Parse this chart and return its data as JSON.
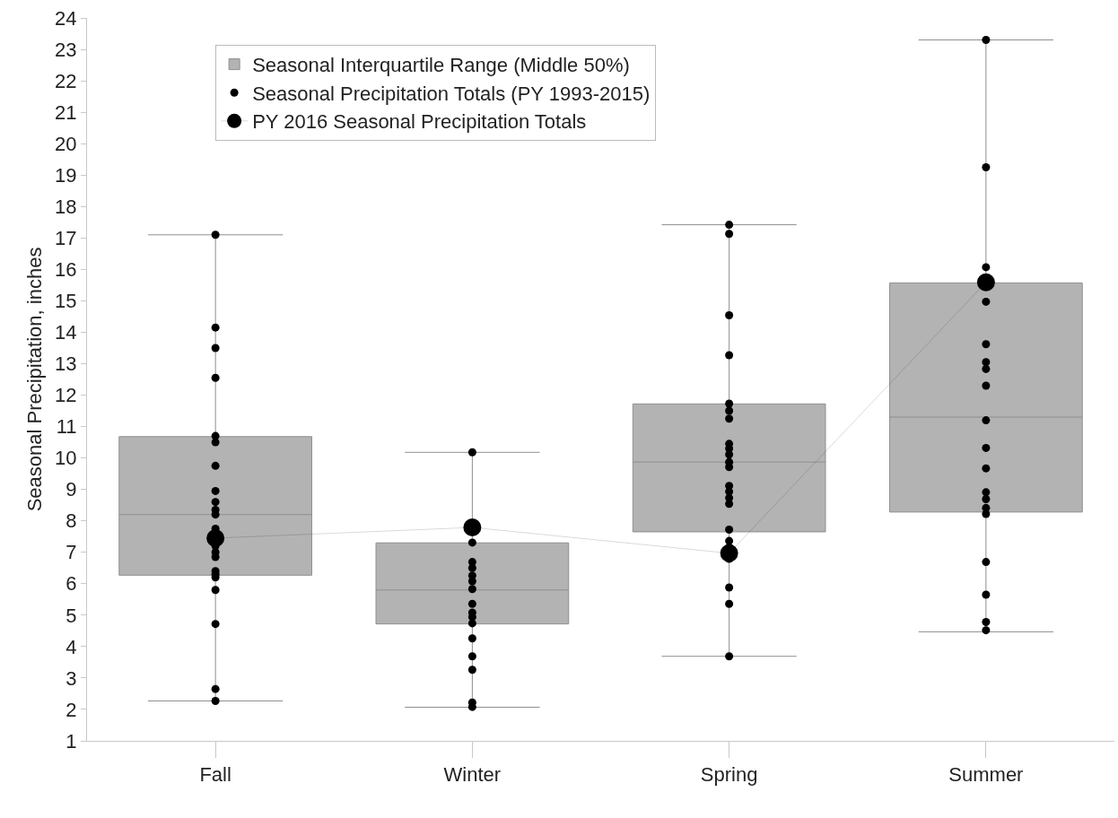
{
  "chart_data": {
    "type": "box",
    "ylabel": "Seasonal Precipitation, inches",
    "categories": [
      "Fall",
      "Winter",
      "Spring",
      "Summer"
    ],
    "ylim": [
      1,
      24
    ],
    "yticks": [
      1,
      2,
      3,
      4,
      5,
      6,
      7,
      8,
      9,
      10,
      11,
      12,
      13,
      14,
      15,
      16,
      17,
      18,
      19,
      20,
      21,
      22,
      23,
      24
    ],
    "grid": false,
    "legend": "top left",
    "series": [
      {
        "name": "Seasonal Interquartile Range (Middle 50%)",
        "color": "#b3b3b3",
        "boxes": [
          {
            "low": 2.27,
            "q1": 6.27,
            "median": 8.2,
            "q3": 10.68,
            "high": 17.1
          },
          {
            "low": 2.07,
            "q1": 4.72,
            "median": 5.8,
            "q3": 7.3,
            "high": 10.18
          },
          {
            "low": 3.69,
            "q1": 7.65,
            "median": 9.87,
            "q3": 11.72,
            "high": 17.42
          },
          {
            "low": 4.47,
            "q1": 8.28,
            "median": 11.3,
            "q3": 15.57,
            "high": 23.3
          }
        ]
      },
      {
        "type": "scatter",
        "name": "Seasonal Precipitation Totals (PY 1993-2015)",
        "color": "#000000",
        "marker": "circle",
        "x": [
          "Fall",
          "Fall",
          "Fall",
          "Fall",
          "Fall",
          "Fall",
          "Fall",
          "Fall",
          "Fall",
          "Fall",
          "Fall",
          "Fall",
          "Fall",
          "Fall",
          "Fall",
          "Fall",
          "Fall",
          "Fall",
          "Fall",
          "Fall",
          "Fall",
          "Fall",
          "Winter",
          "Winter",
          "Winter",
          "Winter",
          "Winter",
          "Winter",
          "Winter",
          "Winter",
          "Winter",
          "Winter",
          "Winter",
          "Winter",
          "Winter",
          "Winter",
          "Winter",
          "Winter",
          "Spring",
          "Spring",
          "Spring",
          "Spring",
          "Spring",
          "Spring",
          "Spring",
          "Spring",
          "Spring",
          "Spring",
          "Spring",
          "Spring",
          "Spring",
          "Spring",
          "Spring",
          "Spring",
          "Spring",
          "Spring",
          "Spring",
          "Spring",
          "Spring",
          "Spring",
          "Spring",
          "Summer",
          "Summer",
          "Summer",
          "Summer",
          "Summer",
          "Summer",
          "Summer",
          "Summer",
          "Summer",
          "Summer",
          "Summer",
          "Summer",
          "Summer",
          "Summer",
          "Summer",
          "Summer",
          "Summer",
          "Summer",
          "Summer"
        ],
        "values": [
          17.1,
          14.15,
          13.5,
          12.55,
          10.7,
          10.5,
          9.75,
          8.95,
          8.6,
          8.35,
          8.2,
          7.75,
          7.2,
          7.0,
          6.85,
          6.4,
          6.3,
          6.2,
          5.8,
          4.72,
          2.65,
          2.27,
          10.18,
          7.31,
          6.69,
          6.5,
          6.26,
          6.08,
          5.83,
          5.36,
          5.08,
          4.94,
          4.74,
          4.26,
          3.69,
          3.26,
          2.22,
          2.08,
          17.42,
          17.13,
          14.54,
          13.27,
          11.73,
          11.5,
          11.25,
          10.45,
          10.3,
          10.11,
          9.87,
          9.71,
          9.11,
          8.93,
          8.73,
          8.54,
          7.72,
          7.36,
          7.16,
          6.79,
          5.88,
          5.36,
          3.69,
          23.3,
          19.25,
          16.07,
          14.97,
          13.62,
          13.05,
          12.83,
          12.3,
          11.2,
          10.32,
          9.67,
          8.91,
          8.69,
          8.41,
          8.22,
          6.69,
          5.65,
          4.78,
          4.52
        ]
      },
      {
        "type": "line",
        "name": "PY 2016 Seasonal Precipitation Totals",
        "color": "#000000",
        "marker": "circle",
        "values": [
          7.45,
          7.79,
          6.97,
          15.59
        ]
      }
    ]
  }
}
